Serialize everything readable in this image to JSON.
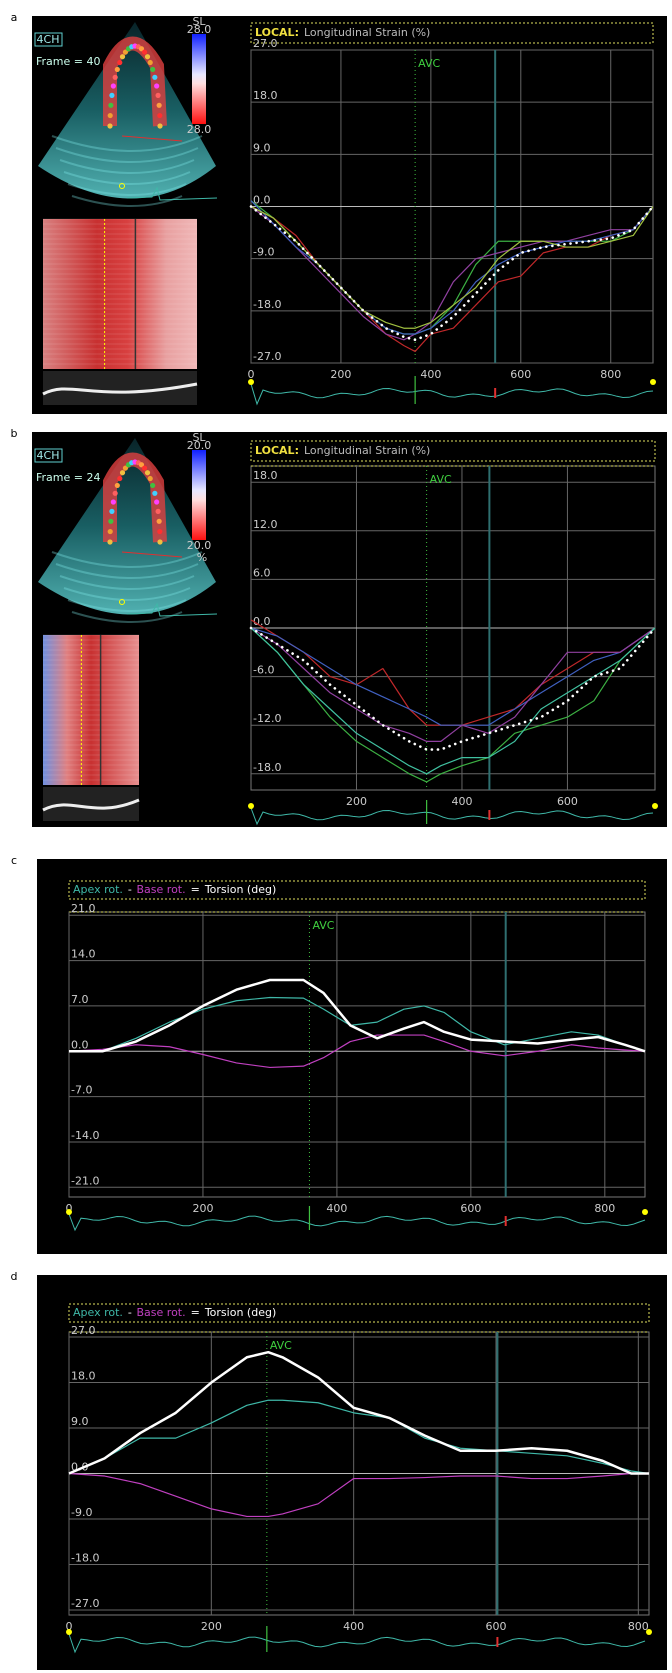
{
  "chart_data": [
    {
      "panel_label": "a",
      "type": "line",
      "title_prefix": "LOCAL:",
      "title": "Longitudinal Strain (%)",
      "echo": {
        "view": "4CH",
        "frame": "Frame = 40",
        "scale_title": "SL",
        "scale_max": "28.0",
        "scale_min": "28.0"
      },
      "x": [
        0,
        50,
        100,
        150,
        200,
        250,
        300,
        340,
        365,
        400,
        450,
        500,
        550,
        600,
        650,
        700,
        750,
        800,
        850,
        894
      ],
      "series": [
        {
          "color": "#3cb043",
          "values": [
            1,
            -2,
            -6,
            -10,
            -14,
            -18,
            -21,
            -22,
            -22,
            -21,
            -17,
            -10,
            -6,
            -6,
            -6,
            -6,
            -6,
            -6,
            -4,
            0
          ]
        },
        {
          "color": "#c0282a",
          "values": [
            0,
            -2,
            -5,
            -10,
            -14,
            -18,
            -22,
            -24,
            -25,
            -22,
            -21,
            -17,
            -13,
            -12,
            -8,
            -7,
            -7,
            -5,
            -4,
            0
          ]
        },
        {
          "color": "#9040a0",
          "values": [
            0,
            -3,
            -7,
            -11,
            -15,
            -19,
            -22,
            -23,
            -22,
            -20,
            -13,
            -9,
            -8,
            -7,
            -6,
            -6,
            -5,
            -4,
            -4,
            0
          ]
        },
        {
          "color": "#4060c0",
          "values": [
            1,
            -3,
            -7,
            -10,
            -14,
            -18,
            -21,
            -22,
            -22,
            -21,
            -18,
            -13,
            -10,
            -8,
            -7,
            -6,
            -6,
            -5,
            -4,
            0
          ]
        },
        {
          "color": "#a0c040",
          "values": [
            0,
            -2,
            -6,
            -10,
            -14,
            -18,
            -20,
            -21,
            -21,
            -20,
            -17,
            -14,
            -9,
            -6,
            -6,
            -7,
            -7,
            -6,
            -5,
            0
          ]
        },
        {
          "color": "#ffffff",
          "dash": "dotted",
          "values": [
            0,
            -3,
            -6,
            -10,
            -14,
            -18,
            -21,
            -22.5,
            -23,
            -22,
            -19,
            -15,
            -11,
            -8,
            -7,
            -6.5,
            -6,
            -5.5,
            -4,
            0
          ]
        }
      ],
      "xlim": [
        0,
        894
      ],
      "xticks": [
        0,
        200,
        400,
        600,
        800
      ],
      "ylim": [
        -27,
        27
      ],
      "yticks": [
        {
          "value": 27,
          "label": "27.0"
        },
        {
          "value": 18,
          "label": "18.0"
        },
        {
          "value": 9,
          "label": "9.0"
        },
        {
          "value": 0,
          "label": "0.0"
        },
        {
          "value": -9,
          "label": "-9.0"
        },
        {
          "value": -18,
          "label": "-18.0"
        },
        {
          "value": -27,
          "label": "-27.0"
        }
      ],
      "grid": true,
      "annotation": {
        "x": 365,
        "label": "AVC"
      },
      "reference_x": 543
    },
    {
      "panel_label": "b",
      "type": "line",
      "title_prefix": "LOCAL:",
      "title": "Longitudinal Strain (%)",
      "echo": {
        "view": "4CH",
        "frame": "Frame = 24",
        "scale_title": "SL",
        "scale_max": "20.0",
        "scale_min": "20.0",
        "scale_unit": "%"
      },
      "x": [
        0,
        50,
        100,
        150,
        200,
        250,
        300,
        333,
        360,
        400,
        450,
        500,
        550,
        600,
        650,
        700,
        766
      ],
      "series": [
        {
          "color": "#c0282a",
          "values": [
            1,
            -1,
            -3,
            -6,
            -7,
            -5,
            -10,
            -12,
            -12,
            -12,
            -11,
            -10,
            -7,
            -5,
            -3,
            -3,
            0
          ]
        },
        {
          "color": "#4060c0",
          "values": [
            0,
            -1,
            -3,
            -5,
            -7,
            -8.5,
            -10,
            -11,
            -12,
            -12,
            -12,
            -10,
            -8,
            -6,
            -4,
            -3,
            0
          ]
        },
        {
          "color": "#9040a0",
          "values": [
            0,
            -2,
            -5,
            -8,
            -10,
            -12,
            -13,
            -14,
            -14,
            -12,
            -13,
            -11,
            -7,
            -3,
            -3,
            -3,
            0
          ]
        },
        {
          "color": "#3cb043",
          "values": [
            0,
            -3,
            -7,
            -11,
            -14,
            -16,
            -18,
            -19,
            -18,
            -17,
            -16,
            -13,
            -12,
            -11,
            -9,
            -4,
            0
          ]
        },
        {
          "color": "#40c0a0",
          "values": [
            0,
            -3,
            -7,
            -10,
            -13,
            -15,
            -17,
            -18,
            -17,
            -16,
            -16,
            -14,
            -10,
            -8,
            -6,
            -4,
            0
          ]
        },
        {
          "color": "#ffffff",
          "dash": "dotted",
          "values": [
            0,
            -2,
            -4,
            -7,
            -9.5,
            -12,
            -14,
            -15,
            -15,
            -14,
            -13,
            -12,
            -11,
            -9,
            -6,
            -5,
            0
          ]
        }
      ],
      "xlim": [
        0,
        766
      ],
      "xticks": [
        200,
        400,
        600
      ],
      "ylim": [
        -20,
        20
      ],
      "yticks": [
        {
          "value": 18,
          "label": "18.0"
        },
        {
          "value": 12,
          "label": "12.0"
        },
        {
          "value": 6,
          "label": "6.0"
        },
        {
          "value": 0,
          "label": "0.0"
        },
        {
          "value": -6,
          "label": "-6.0"
        },
        {
          "value": -12,
          "label": "-12.0"
        },
        {
          "value": -18,
          "label": "-18.0"
        }
      ],
      "grid": true,
      "annotation": {
        "x": 333,
        "label": "AVC"
      },
      "reference_x": 452
    },
    {
      "panel_label": "c",
      "type": "line",
      "legend_operators": [
        "-",
        "="
      ],
      "x": [
        0,
        50,
        100,
        150,
        200,
        250,
        300,
        350,
        380,
        420,
        460,
        500,
        530,
        560,
        600,
        650,
        700,
        750,
        790,
        830,
        860
      ],
      "series": [
        {
          "name": "Apex rot.",
          "color": "#3fb8a8",
          "values": [
            0,
            0,
            2,
            4.5,
            6.5,
            7.8,
            8.3,
            8.2,
            6.5,
            4,
            4.5,
            6.5,
            7,
            6,
            3,
            1,
            2,
            3,
            2.5,
            1,
            0
          ]
        },
        {
          "name": "Base rot.",
          "color": "#c040c0",
          "values": [
            0,
            0.3,
            1,
            0.7,
            -0.5,
            -1.8,
            -2.5,
            -2.3,
            -1,
            1.5,
            2.5,
            2.5,
            2.5,
            1.5,
            0,
            -0.7,
            0,
            1,
            0.5,
            0.2,
            0
          ]
        },
        {
          "name": "Torsion (deg)",
          "color": "#ffffff",
          "width": 2.5,
          "values": [
            0,
            0,
            1.5,
            4,
            7,
            9.5,
            11,
            11,
            9,
            4,
            2,
            3.5,
            4.5,
            3,
            1.8,
            1.5,
            1.2,
            1.8,
            2.2,
            1,
            0
          ]
        }
      ],
      "xlim": [
        0,
        860
      ],
      "xticks": [
        0,
        200,
        400,
        600,
        800
      ],
      "ylim": [
        -22.5,
        21.5
      ],
      "yticks": [
        {
          "value": 21,
          "label": "21.0"
        },
        {
          "value": 14,
          "label": "14.0"
        },
        {
          "value": 7,
          "label": "7.0"
        },
        {
          "value": 0,
          "label": "0.0"
        },
        {
          "value": -7,
          "label": "-7.0"
        },
        {
          "value": -14,
          "label": "-14.0"
        },
        {
          "value": -21,
          "label": "-21.0"
        }
      ],
      "grid": true,
      "annotation": {
        "x": 359,
        "label": "AVC"
      },
      "reference_x": 652
    },
    {
      "panel_label": "d",
      "type": "line",
      "legend_operators": [
        "-",
        "="
      ],
      "x": [
        0,
        50,
        100,
        150,
        200,
        250,
        280,
        300,
        350,
        400,
        450,
        500,
        550,
        600,
        650,
        700,
        750,
        790,
        815
      ],
      "series": [
        {
          "name": "Apex rot.",
          "color": "#3fb8a8",
          "values": [
            0,
            3,
            7,
            7,
            10,
            13.5,
            14.5,
            14.5,
            14,
            12,
            11,
            7,
            5,
            4.5,
            4,
            3.5,
            2,
            0.5,
            0
          ]
        },
        {
          "name": "Base rot.",
          "color": "#c040c0",
          "values": [
            0,
            -0.5,
            -2,
            -4.5,
            -7,
            -8.5,
            -8.5,
            -8,
            -6,
            -1,
            -1,
            -0.8,
            -0.5,
            -0.5,
            -1,
            -1,
            -0.5,
            0,
            0
          ]
        },
        {
          "name": "Torsion (deg)",
          "color": "#ffffff",
          "width": 2.5,
          "values": [
            0,
            3,
            8,
            12,
            18,
            23,
            24,
            23,
            19,
            13,
            11,
            7.5,
            4.5,
            4.5,
            5,
            4.5,
            2.5,
            0,
            0
          ]
        }
      ],
      "xlim": [
        0,
        815
      ],
      "xticks": [
        0,
        200,
        400,
        600,
        800
      ],
      "ylim": [
        -28,
        28
      ],
      "yticks": [
        {
          "value": 27,
          "label": "27.0"
        },
        {
          "value": 18,
          "label": "18.0"
        },
        {
          "value": 9,
          "label": "9.0"
        },
        {
          "value": 0,
          "label": "0.0"
        },
        {
          "value": -9,
          "label": "-9.0"
        },
        {
          "value": -18,
          "label": "-18.0"
        },
        {
          "value": -27,
          "label": "-27.0"
        }
      ],
      "grid": true,
      "annotation": {
        "x": 278,
        "label": "AVC"
      },
      "reference_x": 602
    }
  ]
}
